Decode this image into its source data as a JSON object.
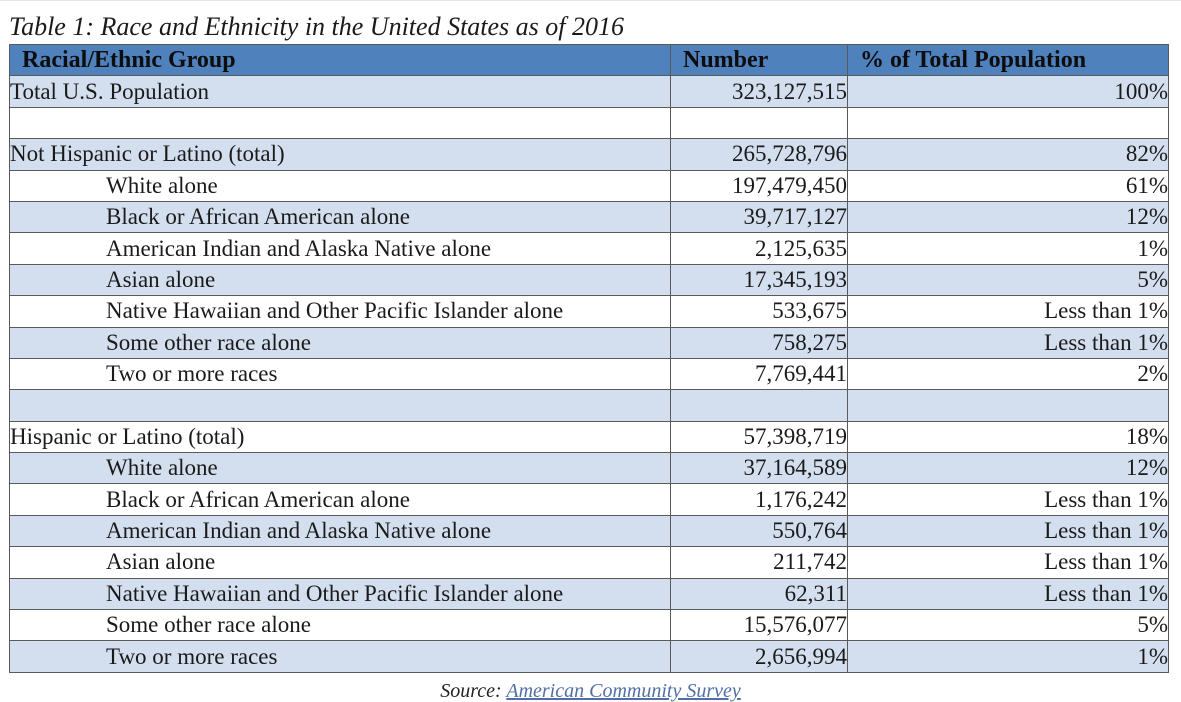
{
  "caption": "Table 1: Race and Ethnicity in the United States as of 2016",
  "table": {
    "headers": [
      "Racial/Ethnic Group",
      "Number",
      "% of Total Population"
    ],
    "rows": [
      {
        "label": "Total U.S. Population",
        "number": "323,127,515",
        "percent": "100%",
        "indent": false
      },
      {
        "label": "",
        "number": "",
        "percent": "",
        "indent": false
      },
      {
        "label": "Not Hispanic or Latino (total)",
        "number": "265,728,796",
        "percent": "82%",
        "indent": false
      },
      {
        "label": "White alone",
        "number": "197,479,450",
        "percent": "61%",
        "indent": true
      },
      {
        "label": "Black or African American alone",
        "number": "39,717,127",
        "percent": "12%",
        "indent": true
      },
      {
        "label": "American Indian and Alaska Native alone",
        "number": "2,125,635",
        "percent": "1%",
        "indent": true
      },
      {
        "label": "Asian alone",
        "number": "17,345,193",
        "percent": "5%",
        "indent": true
      },
      {
        "label": "Native Hawaiian and Other Pacific Islander alone",
        "number": "533,675",
        "percent": "Less than 1%",
        "indent": true
      },
      {
        "label": "Some other race alone",
        "number": "758,275",
        "percent": "Less than 1%",
        "indent": true
      },
      {
        "label": "Two or more races",
        "number": "7,769,441",
        "percent": "2%",
        "indent": true
      },
      {
        "label": "",
        "number": "",
        "percent": "",
        "indent": false
      },
      {
        "label": "Hispanic or Latino (total)",
        "number": "57,398,719",
        "percent": "18%",
        "indent": false
      },
      {
        "label": "White alone",
        "number": "37,164,589",
        "percent": "12%",
        "indent": true
      },
      {
        "label": "Black or African American alone",
        "number": "1,176,242",
        "percent": "Less than 1%",
        "indent": true
      },
      {
        "label": "American Indian and Alaska Native alone",
        "number": "550,764",
        "percent": "Less than 1%",
        "indent": true
      },
      {
        "label": "Asian alone",
        "number": "211,742",
        "percent": "Less than 1%",
        "indent": true
      },
      {
        "label": "Native Hawaiian and Other Pacific Islander alone",
        "number": "62,311",
        "percent": "Less than 1%",
        "indent": true
      },
      {
        "label": "Some other race alone",
        "number": "15,576,077",
        "percent": "5%",
        "indent": true
      },
      {
        "label": "Two or more races",
        "number": "2,656,994",
        "percent": "1%",
        "indent": true
      }
    ]
  },
  "source": {
    "prefix": "Source:",
    "link_text": "American Community Survey"
  },
  "colors": {
    "header_bg": "#4f81bd",
    "band_bg": "#d3dfee",
    "link": "#4f6fa6"
  }
}
